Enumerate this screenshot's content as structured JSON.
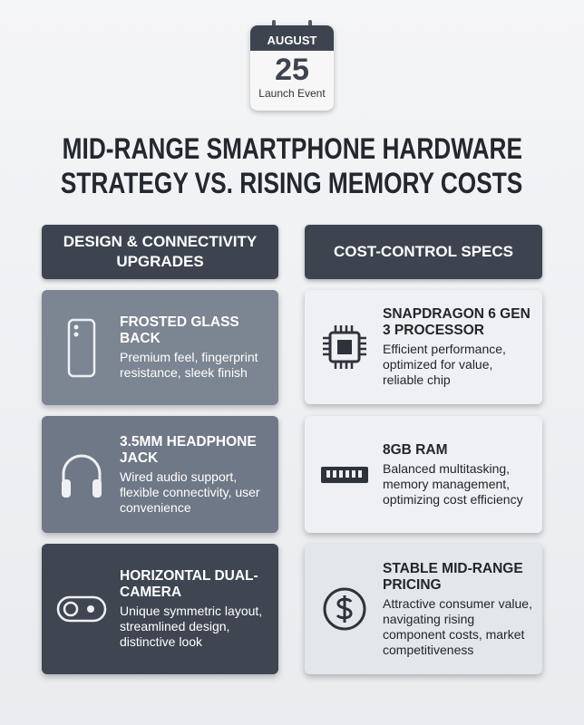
{
  "calendar": {
    "month": "AUGUST",
    "day": "25",
    "caption": "Launch Event"
  },
  "title": [
    "MID-RANGE SMARTPHONE HARDWARE",
    "STRATEGY VS. RISING MEMORY COSTS"
  ],
  "columns": [
    {
      "header": "DESIGN & CONNECTIVITY UPGRADES",
      "cards": [
        {
          "title": "FROSTED GLASS BACK",
          "description": "Premium feel, fingerprint resistance, sleek finish"
        },
        {
          "title": "3.5MM HEADPHONE JACK",
          "description": "Wired audio support, flexible connectivity, user convenience"
        },
        {
          "title": "HORIZONTAL DUAL-CAMERA",
          "description": "Unique symmetric layout, streamlined design, distinctive look"
        }
      ]
    },
    {
      "header": "COST-CONTROL SPECS",
      "cards": [
        {
          "title": "SNAPDRAGON 6 GEN 3 PROCESSOR",
          "description": "Efficient performance, optimized for value, reliable chip"
        },
        {
          "title": "8GB RAM",
          "description": "Balanced multitasking, memory management, optimizing cost efficiency"
        },
        {
          "title": "STABLE MID-RANGE PRICING",
          "description": "Attractive consumer value, navigating rising component costs, market competitiveness"
        }
      ]
    }
  ]
}
